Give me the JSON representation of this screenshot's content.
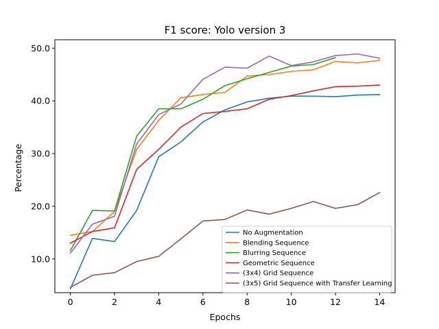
{
  "chart_data": {
    "type": "line",
    "title": "F1 score: Yolo version 3",
    "xlabel": "Epochs",
    "ylabel": "Percentage",
    "xlim": [
      -0.7,
      14.7
    ],
    "ylim": [
      3.6,
      51.6
    ],
    "xticks": [
      0,
      2,
      4,
      6,
      8,
      10,
      12,
      14
    ],
    "xtick_labels": [
      "0",
      "2",
      "4",
      "6",
      "8",
      "10",
      "12",
      "14"
    ],
    "yticks": [
      10,
      20,
      30,
      40,
      50
    ],
    "ytick_labels": [
      "10.0",
      "20.0",
      "30.0",
      "40.0",
      "50.0"
    ],
    "grid": false,
    "legend_position": "lower-right",
    "series": [
      {
        "name": "No Augmentation",
        "color": "#1f77b4",
        "x": [
          0,
          1,
          2,
          3,
          4,
          5,
          6,
          7,
          8,
          9,
          10,
          11,
          12,
          13,
          14
        ],
        "y": [
          4.3,
          13.9,
          13.3,
          19.2,
          29.4,
          32.2,
          36.0,
          38.3,
          39.8,
          40.5,
          40.9,
          40.9,
          40.8,
          41.1,
          41.2
        ]
      },
      {
        "name": "Blending Sequence",
        "color": "#ff7f0e",
        "x": [
          0,
          1,
          2,
          3,
          4,
          5,
          6,
          7,
          8,
          9,
          10,
          11,
          12,
          13,
          14
        ],
        "y": [
          14.5,
          15.2,
          19.0,
          30.8,
          36.3,
          40.6,
          41.2,
          41.6,
          44.7,
          45.0,
          45.6,
          45.9,
          47.5,
          47.2,
          47.7
        ]
      },
      {
        "name": "Blurring Sequence",
        "color": "#2ca02c",
        "x": [
          0,
          1,
          2,
          3,
          4,
          5,
          6,
          7,
          8,
          9,
          10,
          11,
          12
        ],
        "y": [
          11.6,
          19.2,
          19.1,
          33.3,
          38.5,
          38.5,
          40.3,
          42.9,
          44.2,
          45.4,
          46.6,
          46.9,
          48.2
        ]
      },
      {
        "name": "Geometric Sequence",
        "color": "#d62728",
        "x": [
          0,
          1,
          2,
          3,
          4,
          5,
          6,
          7,
          8,
          9,
          10,
          11,
          12,
          13,
          14
        ],
        "y": [
          13.0,
          15.2,
          15.9,
          27.0,
          30.8,
          35.0,
          37.6,
          38.0,
          38.5,
          40.3,
          41.0,
          41.9,
          42.7,
          42.8,
          43.0
        ]
      },
      {
        "name": "(3x4) Grid Sequence",
        "color": "#9467bd",
        "x": [
          0,
          1,
          2,
          3,
          4,
          5,
          6,
          7,
          8,
          9,
          10,
          11,
          12,
          13,
          14
        ],
        "y": [
          11.1,
          16.6,
          18.1,
          31.8,
          37.4,
          39.4,
          44.1,
          46.4,
          46.2,
          48.5,
          46.7,
          47.4,
          48.6,
          48.9,
          48.1
        ]
      },
      {
        "name": "(3x5) Grid Sequence with Transfer Learning",
        "color": "#8c564b",
        "x": [
          0,
          1,
          2,
          3,
          4,
          5,
          6,
          7,
          8,
          9,
          10,
          11,
          12,
          13,
          14
        ],
        "y": [
          4.6,
          6.9,
          7.4,
          9.5,
          10.5,
          13.8,
          17.2,
          17.5,
          19.3,
          18.5,
          19.6,
          20.9,
          19.6,
          20.3,
          22.6
        ]
      }
    ]
  }
}
